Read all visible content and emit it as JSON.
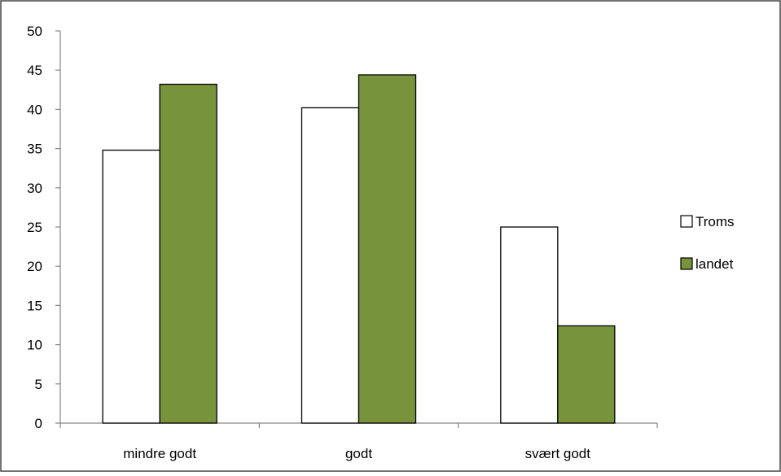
{
  "chart_data": {
    "type": "bar",
    "title": "",
    "xlabel": "",
    "ylabel": "",
    "categories": [
      "mindre godt",
      "godt",
      "svært godt"
    ],
    "series": [
      {
        "name": "Troms",
        "values": [
          34.8,
          40.2,
          25.0
        ],
        "color": "#ffffff"
      },
      {
        "name": "landet",
        "values": [
          43.2,
          44.4,
          12.4
        ],
        "color": "#77933c"
      }
    ],
    "ylim": [
      0,
      50
    ],
    "yticks": [
      "0",
      "5",
      "10",
      "15",
      "20",
      "25",
      "30",
      "35",
      "40",
      "45",
      "50"
    ],
    "grid": false,
    "legend_position": "right"
  }
}
